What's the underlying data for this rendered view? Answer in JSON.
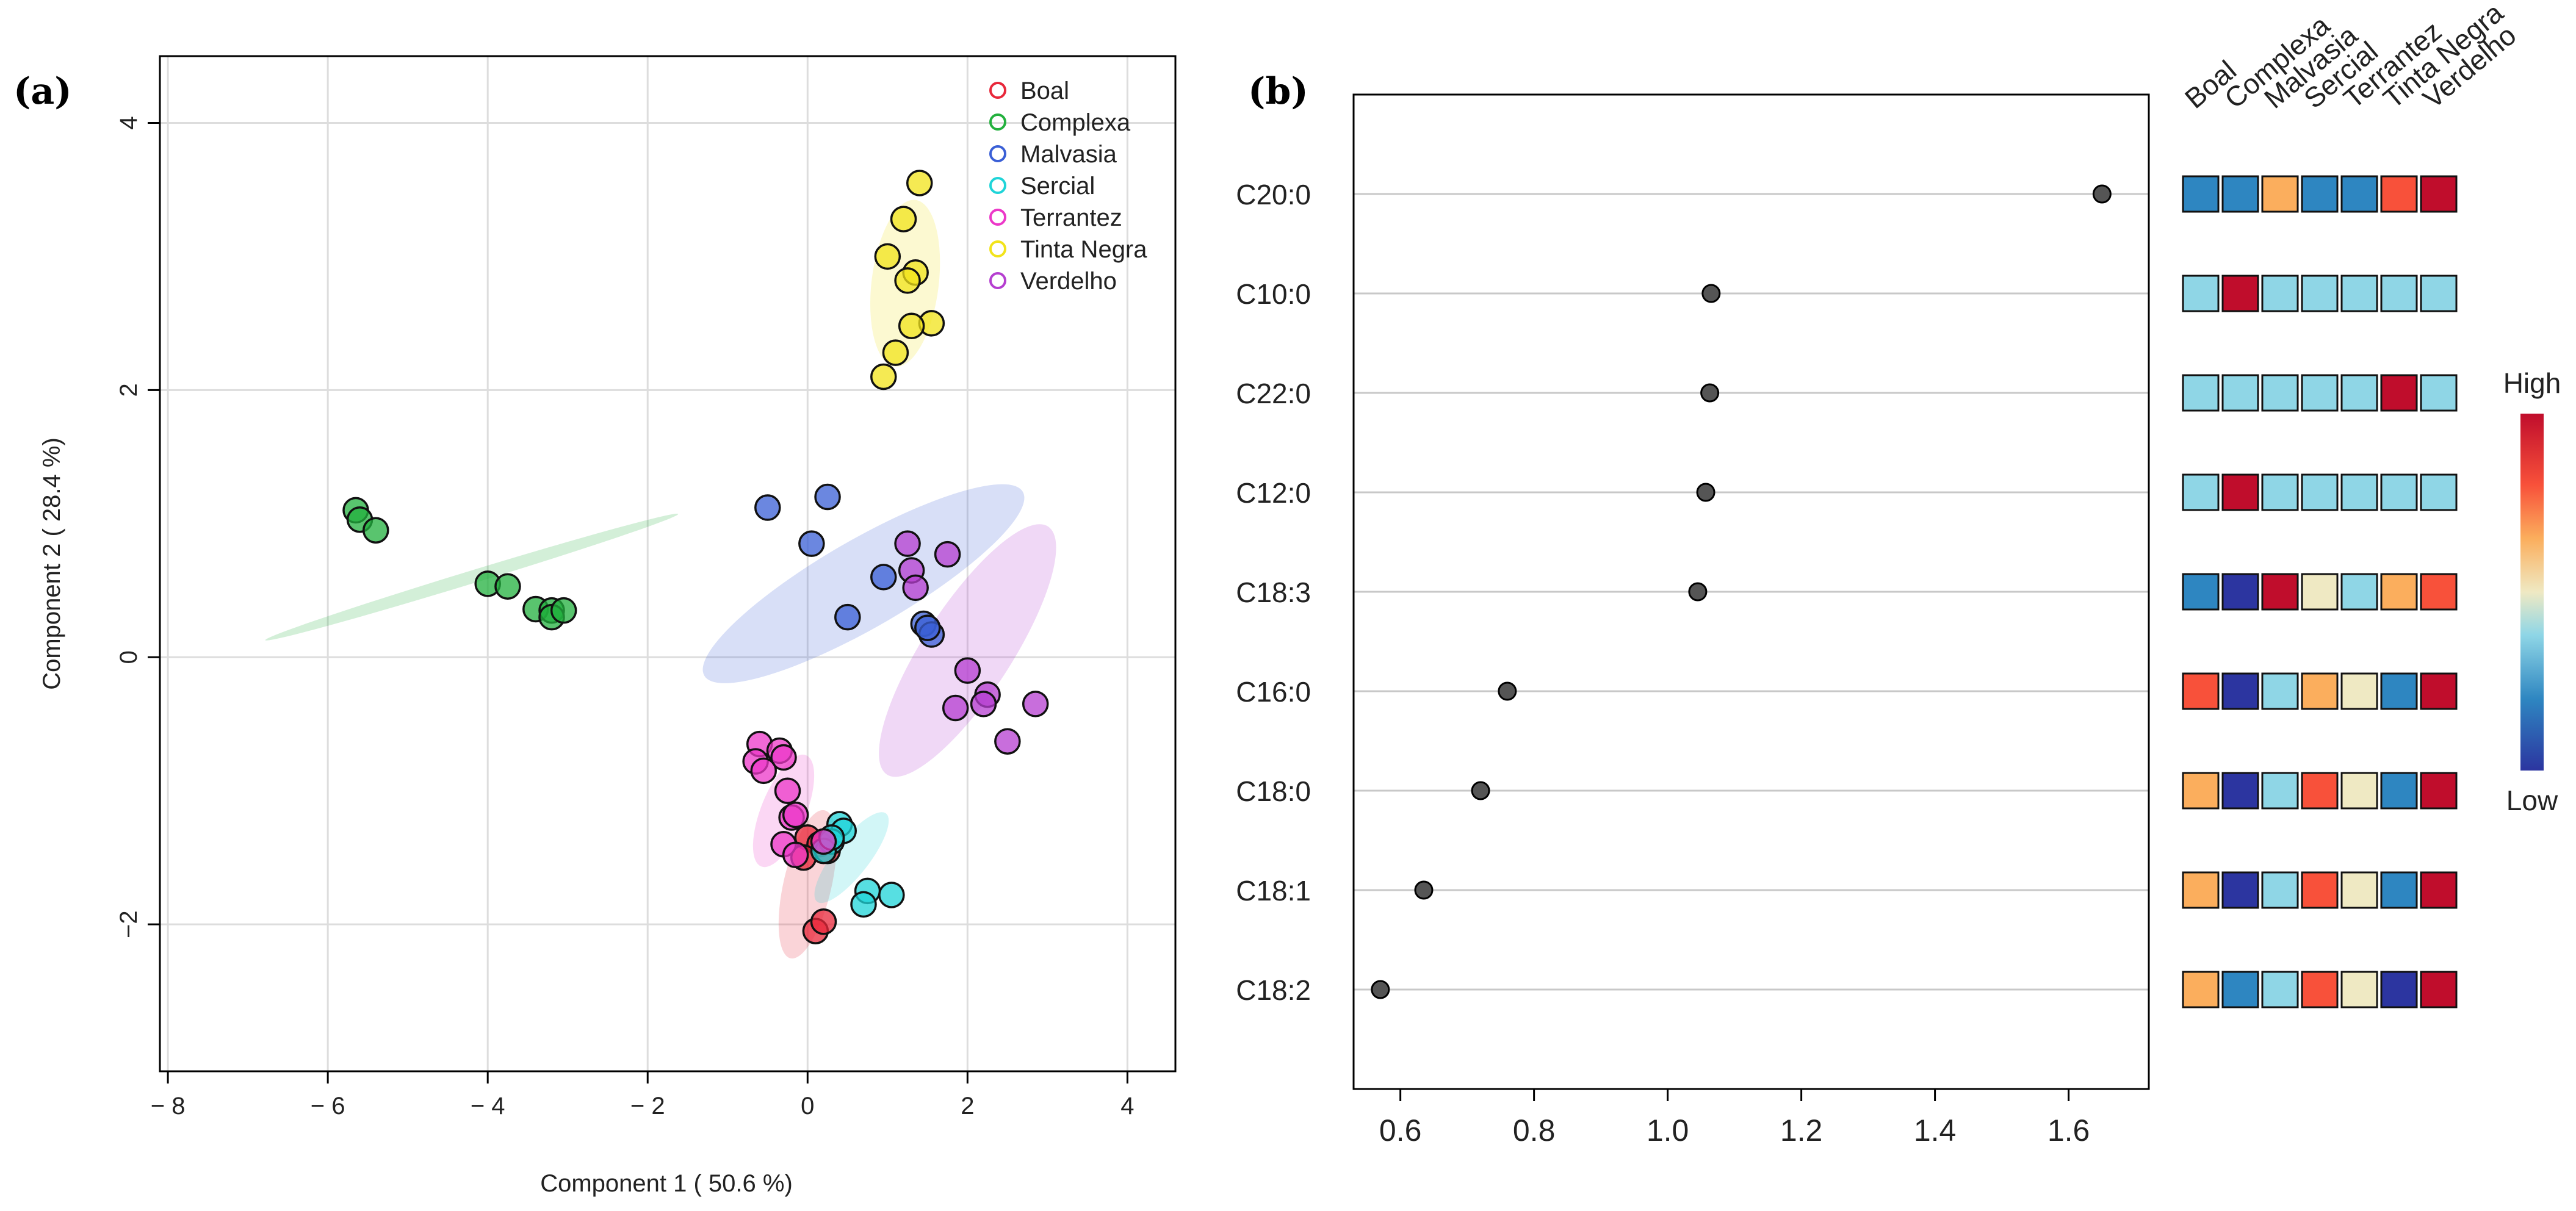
{
  "panel_a_label": "(a)",
  "panel_b_label": "(b)",
  "chart_data": [
    {
      "type": "scatter",
      "title": "",
      "xlabel": "Component 1 ( 50.6 %)",
      "ylabel": "Component 2 ( 28.4 %)",
      "xlim": [
        -8.1,
        4.6
      ],
      "ylim": [
        -3.1,
        4.5
      ],
      "xticks": [
        -8,
        -6,
        -4,
        -2,
        0,
        2,
        4
      ],
      "yticks": [
        -2,
        0,
        2,
        4
      ],
      "xtick_labels": [
        "− 8",
        "− 6",
        "− 4",
        "− 2",
        "0",
        "2",
        "4"
      ],
      "ytick_labels": [
        "−2",
        "0",
        "2",
        "4"
      ],
      "grid": true,
      "legend_position": "top-right",
      "series": [
        {
          "name": "Boal",
          "color": "#e8273a",
          "points": [
            [
              0.1,
              -2.05
            ],
            [
              0.2,
              -1.98
            ],
            [
              0.0,
              -1.35
            ],
            [
              0.15,
              -1.4
            ],
            [
              0.25,
              -1.45
            ],
            [
              -0.05,
              -1.5
            ]
          ],
          "ellipse": {
            "cx": 0.0,
            "cy": -1.7,
            "rx": 0.95,
            "ry": 0.3,
            "angle": -77
          }
        },
        {
          "name": "Complexa",
          "color": "#22b03d",
          "points": [
            [
              -5.65,
              1.1
            ],
            [
              -5.6,
              1.03
            ],
            [
              -5.4,
              0.95
            ],
            [
              -4.0,
              0.55
            ],
            [
              -3.75,
              0.53
            ],
            [
              -3.4,
              0.36
            ],
            [
              -3.2,
              0.35
            ],
            [
              -3.2,
              0.3
            ],
            [
              -3.05,
              0.35
            ]
          ],
          "ellipse": {
            "cx": -4.2,
            "cy": 0.6,
            "rx": 2.7,
            "ry": 0.08,
            "angle": -17
          }
        },
        {
          "name": "Malvasia",
          "color": "#3a5fd6",
          "points": [
            [
              -0.5,
              1.12
            ],
            [
              0.25,
              1.2
            ],
            [
              0.05,
              0.85
            ],
            [
              0.5,
              0.3
            ],
            [
              0.95,
              0.6
            ],
            [
              1.45,
              0.25
            ],
            [
              1.55,
              0.17
            ],
            [
              1.5,
              0.22
            ]
          ],
          "ellipse": {
            "cx": 0.7,
            "cy": 0.55,
            "rx": 2.3,
            "ry": 0.55,
            "angle": -30
          }
        },
        {
          "name": "Sercial",
          "color": "#1fd4d8",
          "points": [
            [
              0.4,
              -1.25
            ],
            [
              0.45,
              -1.3
            ],
            [
              0.3,
              -1.38
            ],
            [
              0.2,
              -1.45
            ],
            [
              0.75,
              -1.75
            ],
            [
              1.05,
              -1.78
            ],
            [
              0.7,
              -1.85
            ],
            [
              0.3,
              -1.35
            ]
          ],
          "ellipse": {
            "cx": 0.55,
            "cy": -1.5,
            "rx": 0.7,
            "ry": 0.22,
            "angle": -52
          }
        },
        {
          "name": "Terrantez",
          "color": "#ec37c8",
          "points": [
            [
              -0.6,
              -0.65
            ],
            [
              -0.35,
              -0.7
            ],
            [
              -0.3,
              -0.75
            ],
            [
              -0.65,
              -0.78
            ],
            [
              -0.55,
              -0.85
            ],
            [
              -0.25,
              -1.0
            ],
            [
              -0.2,
              -1.2
            ],
            [
              -0.15,
              -1.18
            ],
            [
              -0.3,
              -1.4
            ],
            [
              -0.15,
              -1.48
            ],
            [
              0.2,
              -1.38
            ]
          ],
          "ellipse": {
            "cx": -0.3,
            "cy": -1.15,
            "rx": 0.75,
            "ry": 0.28,
            "angle": -68
          }
        },
        {
          "name": "Tinta Negra",
          "color": "#f2e31a",
          "points": [
            [
              1.4,
              3.55
            ],
            [
              1.2,
              3.28
            ],
            [
              1.0,
              3.0
            ],
            [
              1.35,
              2.88
            ],
            [
              1.25,
              2.82
            ],
            [
              1.55,
              2.5
            ],
            [
              1.3,
              2.48
            ],
            [
              1.1,
              2.28
            ],
            [
              0.95,
              2.1
            ]
          ],
          "ellipse": {
            "cx": 1.22,
            "cy": 2.8,
            "rx": 1.05,
            "ry": 0.42,
            "angle": -83
          }
        },
        {
          "name": "Verdelho",
          "color": "#b53ed0",
          "points": [
            [
              1.25,
              0.85
            ],
            [
              1.75,
              0.77
            ],
            [
              1.3,
              0.65
            ],
            [
              1.35,
              0.52
            ],
            [
              2.0,
              -0.1
            ],
            [
              2.25,
              -0.28
            ],
            [
              2.2,
              -0.35
            ],
            [
              1.85,
              -0.38
            ],
            [
              2.85,
              -0.35
            ],
            [
              2.5,
              -0.63
            ]
          ],
          "ellipse": {
            "cx": 2.0,
            "cy": 0.05,
            "rx": 1.85,
            "ry": 0.55,
            "angle": -57
          }
        }
      ]
    },
    {
      "type": "dot",
      "title": "",
      "xlim": [
        0.53,
        1.72
      ],
      "xticks": [
        0.6,
        0.8,
        1.0,
        1.2,
        1.4,
        1.6
      ],
      "xtick_labels": [
        "0.6",
        "0.8",
        "1.0",
        "1.2",
        "1.4",
        "1.6"
      ],
      "categories": [
        "C20:0",
        "C10:0",
        "C22:0",
        "C12:0",
        "C18:3",
        "C16:0",
        "C18:0",
        "C18:1",
        "C18:2"
      ],
      "values": [
        1.65,
        1.065,
        1.063,
        1.057,
        1.045,
        0.76,
        0.72,
        0.635,
        0.57
      ]
    },
    {
      "type": "heatmap",
      "columns": [
        "Boal",
        "Complexa",
        "Malvasia",
        "Sercial",
        "Terrantez",
        "Tinta Negra",
        "Verdelho"
      ],
      "rows": [
        "C20:0",
        "C10:0",
        "C22:0",
        "C12:0",
        "C18:3",
        "C16:0",
        "C18:0",
        "C18:1",
        "C18:2"
      ],
      "scale_levels": [
        "#2c35a0",
        "#2e86c1",
        "#8fd6e6",
        "#efe9c3",
        "#fbae5d",
        "#f8513a",
        "#c00d2c"
      ],
      "levels": [
        [
          1,
          1,
          4,
          1,
          1,
          5,
          6
        ],
        [
          2,
          6,
          2,
          2,
          2,
          2,
          2
        ],
        [
          2,
          2,
          2,
          2,
          2,
          6,
          2
        ],
        [
          2,
          6,
          2,
          2,
          2,
          2,
          2
        ],
        [
          1,
          0,
          6,
          3,
          2,
          4,
          5
        ],
        [
          5,
          0,
          2,
          4,
          3,
          1,
          6
        ],
        [
          4,
          0,
          2,
          5,
          3,
          1,
          6
        ],
        [
          4,
          0,
          2,
          5,
          3,
          1,
          6
        ],
        [
          4,
          1,
          2,
          5,
          3,
          0,
          6
        ]
      ],
      "legend_high": "High",
      "legend_low": "Low"
    }
  ]
}
